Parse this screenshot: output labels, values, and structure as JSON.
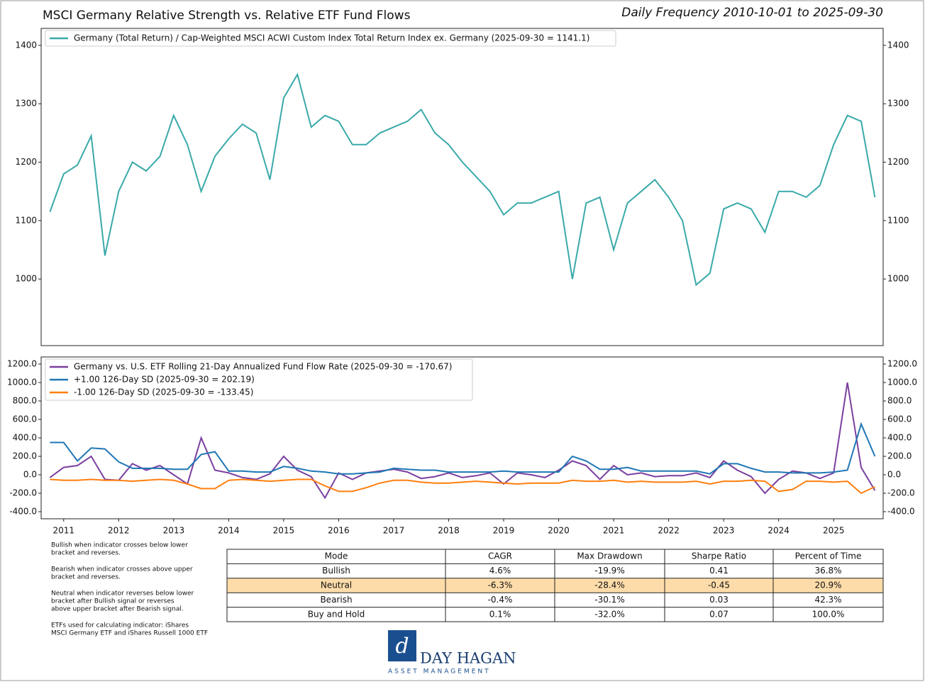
{
  "chart_data": [
    {
      "type": "line",
      "title": "MSCI Germany Relative Strength vs. Relative ETF Fund Flows",
      "subtitle": "Daily Frequency 2010-10-01 to 2025-09-30",
      "x": [
        2010.75,
        2011.0,
        2011.25,
        2011.5,
        2011.75,
        2012.0,
        2012.25,
        2012.5,
        2012.75,
        2013.0,
        2013.25,
        2013.5,
        2013.75,
        2014.0,
        2014.25,
        2014.5,
        2014.75,
        2015.0,
        2015.25,
        2015.5,
        2015.75,
        2016.0,
        2016.25,
        2016.5,
        2016.75,
        2017.0,
        2017.25,
        2017.5,
        2017.75,
        2018.0,
        2018.25,
        2018.5,
        2018.75,
        2019.0,
        2019.25,
        2019.5,
        2019.75,
        2020.0,
        2020.25,
        2020.5,
        2020.75,
        2021.0,
        2021.25,
        2021.5,
        2021.75,
        2022.0,
        2022.25,
        2022.5,
        2022.75,
        2023.0,
        2023.25,
        2023.5,
        2023.75,
        2024.0,
        2024.25,
        2024.5,
        2024.75,
        2025.0,
        2025.25,
        2025.5,
        2025.75
      ],
      "series": [
        {
          "name": "Germany (Total Return) / Cap-Weighted MSCI ACWI Custom Index Total Return Index ex. Germany (2025-09-30 = 1141.1)",
          "color": "#3aa9a9",
          "values": [
            1115,
            1180,
            1195,
            1245,
            1040,
            1150,
            1200,
            1185,
            1210,
            1280,
            1230,
            1150,
            1210,
            1240,
            1265,
            1250,
            1170,
            1310,
            1350,
            1260,
            1280,
            1270,
            1230,
            1230,
            1250,
            1260,
            1270,
            1290,
            1250,
            1230,
            1200,
            1175,
            1150,
            1110,
            1130,
            1130,
            1140,
            1150,
            1000,
            1130,
            1140,
            1050,
            1130,
            1150,
            1170,
            1140,
            1100,
            990,
            1010,
            1120,
            1130,
            1120,
            1080,
            1150,
            1150,
            1140,
            1160,
            1230,
            1280,
            1270,
            1140
          ]
        }
      ],
      "xlim": [
        2010.59,
        2025.9
      ],
      "ylim": [
        886,
        1429
      ],
      "yticks": [
        1000,
        1100,
        1200,
        1300,
        1400
      ]
    },
    {
      "type": "line",
      "x": [
        2010.75,
        2011.0,
        2011.25,
        2011.5,
        2011.75,
        2012.0,
        2012.25,
        2012.5,
        2012.75,
        2013.0,
        2013.25,
        2013.5,
        2013.75,
        2014.0,
        2014.25,
        2014.5,
        2014.75,
        2015.0,
        2015.25,
        2015.5,
        2015.75,
        2016.0,
        2016.25,
        2016.5,
        2016.75,
        2017.0,
        2017.25,
        2017.5,
        2017.75,
        2018.0,
        2018.25,
        2018.5,
        2018.75,
        2019.0,
        2019.25,
        2019.5,
        2019.75,
        2020.0,
        2020.25,
        2020.5,
        2020.75,
        2021.0,
        2021.25,
        2021.5,
        2021.75,
        2022.0,
        2022.25,
        2022.5,
        2022.75,
        2023.0,
        2023.25,
        2023.5,
        2023.75,
        2024.0,
        2024.25,
        2024.5,
        2024.75,
        2025.0,
        2025.25,
        2025.5,
        2025.75
      ],
      "series": [
        {
          "name": "Germany vs. U.S. ETF Rolling 21-Day Annualized Fund Flow Rate (2025-09-30 = -170.67)",
          "color": "#7b3fa0",
          "values": [
            -30,
            80,
            100,
            200,
            -50,
            -60,
            120,
            50,
            100,
            0,
            -100,
            400,
            50,
            20,
            -30,
            -50,
            10,
            200,
            50,
            -20,
            -250,
            20,
            -50,
            20,
            40,
            60,
            30,
            -40,
            -20,
            20,
            -30,
            -10,
            20,
            -100,
            20,
            0,
            -30,
            50,
            150,
            100,
            -50,
            100,
            0,
            20,
            -20,
            -10,
            -10,
            20,
            -30,
            150,
            50,
            -20,
            -200,
            -50,
            40,
            20,
            -40,
            20,
            1000,
            80,
            -170
          ]
        },
        {
          "name": "+1.00 126-Day SD (2025-09-30 = 202.19)",
          "color": "#1f77b4",
          "values": [
            350,
            350,
            150,
            290,
            280,
            140,
            70,
            70,
            70,
            60,
            60,
            220,
            250,
            40,
            40,
            30,
            30,
            90,
            70,
            40,
            30,
            10,
            10,
            20,
            30,
            70,
            60,
            50,
            50,
            30,
            30,
            30,
            30,
            40,
            30,
            30,
            30,
            30,
            200,
            150,
            60,
            60,
            80,
            40,
            40,
            40,
            40,
            40,
            10,
            120,
            120,
            70,
            30,
            30,
            20,
            20,
            20,
            30,
            50,
            550,
            200
          ]
        },
        {
          "name": "-1.00 126-Day SD (2025-09-30 = -133.45)",
          "color": "#ff7f0e",
          "values": [
            -50,
            -60,
            -60,
            -50,
            -60,
            -60,
            -70,
            -60,
            -50,
            -60,
            -100,
            -150,
            -150,
            -60,
            -50,
            -60,
            -70,
            -60,
            -50,
            -50,
            -120,
            -180,
            -180,
            -140,
            -90,
            -60,
            -60,
            -80,
            -90,
            -90,
            -80,
            -70,
            -80,
            -90,
            -100,
            -90,
            -90,
            -90,
            -60,
            -70,
            -70,
            -60,
            -80,
            -70,
            -80,
            -80,
            -80,
            -70,
            -100,
            -70,
            -70,
            -60,
            -70,
            -180,
            -160,
            -70,
            -70,
            -80,
            -70,
            -200,
            -130
          ]
        }
      ],
      "xlim": [
        2010.59,
        2025.9
      ],
      "xticks": [
        2011,
        2012,
        2013,
        2014,
        2015,
        2016,
        2017,
        2018,
        2019,
        2020,
        2021,
        2022,
        2023,
        2024,
        2025
      ],
      "ylim": [
        -477,
        1277
      ],
      "yticks": [
        {
          "value": -400,
          "label": "-400.0"
        },
        {
          "value": -200,
          "label": "-200.0"
        },
        {
          "value": 0,
          "label": "0.0"
        },
        {
          "value": 200,
          "label": "200.0"
        },
        {
          "value": 400,
          "label": "400.0"
        },
        {
          "value": 600,
          "label": "600.0"
        },
        {
          "value": 800,
          "label": "800.0"
        },
        {
          "value": 1000,
          "label": "1000.0"
        },
        {
          "value": 1200,
          "label": "1200.0"
        }
      ]
    }
  ],
  "notes": [
    [
      "Bullish when indicator crosses below lower",
      "bracket and reverses."
    ],
    [
      "Bearish when indicator crosses above upper",
      "bracket and reverses."
    ],
    [
      "Neutral when indicator reverses below lower",
      "bracket after Bullish signal or reverses",
      "above upper bracket after Bearish signal."
    ],
    [
      "ETFs used for calculating indicator: iShares",
      "MSCI Germany ETF and iShares Russell 1000 ETF"
    ]
  ],
  "table": {
    "columns": [
      "Mode",
      "CAGR",
      "Max Drawdown",
      "Sharpe Ratio",
      "Percent of Time"
    ],
    "rows": [
      [
        "Bullish",
        "4.6%",
        "-19.9%",
        "0.41",
        "36.8%"
      ],
      [
        "Neutral",
        "-6.3%",
        "-28.4%",
        "-0.45",
        "20.9%"
      ],
      [
        "Bearish",
        "-0.4%",
        "-30.1%",
        "0.03",
        "42.3%"
      ],
      [
        "Buy and Hold",
        "0.1%",
        "-32.0%",
        "0.07",
        "100.0%"
      ]
    ],
    "highlight_row": 1,
    "highlight_color": "#fddcaa"
  },
  "logo": {
    "name": "DAY HAGAN",
    "tagline": "ASSET MANAGEMENT"
  }
}
